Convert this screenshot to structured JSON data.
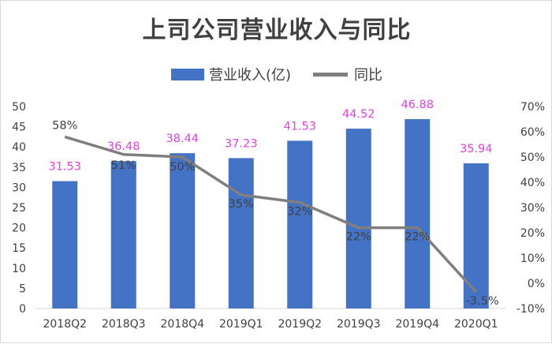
{
  "chart_data": {
    "type": "bar",
    "title": "上司公司营业收入与同比",
    "categories": [
      "2018Q2",
      "2018Q3",
      "2018Q4",
      "2019Q1",
      "2019Q2",
      "2019Q3",
      "2019Q4",
      "2020Q1"
    ],
    "series": [
      {
        "name": "营业收入(亿)",
        "type": "bar",
        "axis": "left",
        "values": [
          31.53,
          36.48,
          38.44,
          37.23,
          41.53,
          44.52,
          46.88,
          35.94
        ],
        "labels": [
          "31.53",
          "36.48",
          "38.44",
          "37.23",
          "41.53",
          "44.52",
          "46.88",
          "35.94"
        ]
      },
      {
        "name": "同比",
        "type": "line",
        "axis": "right",
        "values": [
          58,
          51,
          50,
          35,
          32,
          22,
          22,
          -3.5
        ],
        "labels": [
          "58%",
          "51%",
          "50%",
          "35%",
          "32%",
          "22%",
          "22%",
          "-3.5%"
        ]
      }
    ],
    "ylim": [
      0,
      50
    ],
    "y_ticks": [
      "0",
      "5",
      "10",
      "15",
      "20",
      "25",
      "30",
      "35",
      "40",
      "45",
      "50"
    ],
    "y2lim": [
      -10,
      70
    ],
    "y2_ticks": [
      "-10%",
      "0%",
      "10%",
      "20%",
      "30%",
      "40%",
      "50%",
      "60%",
      "70%"
    ],
    "legend_position": "top-center",
    "grid": false,
    "colors": {
      "bar": "#4472c4",
      "line": "#7f7f7f",
      "bar_label": "#e040e0",
      "text": "#404040"
    }
  }
}
